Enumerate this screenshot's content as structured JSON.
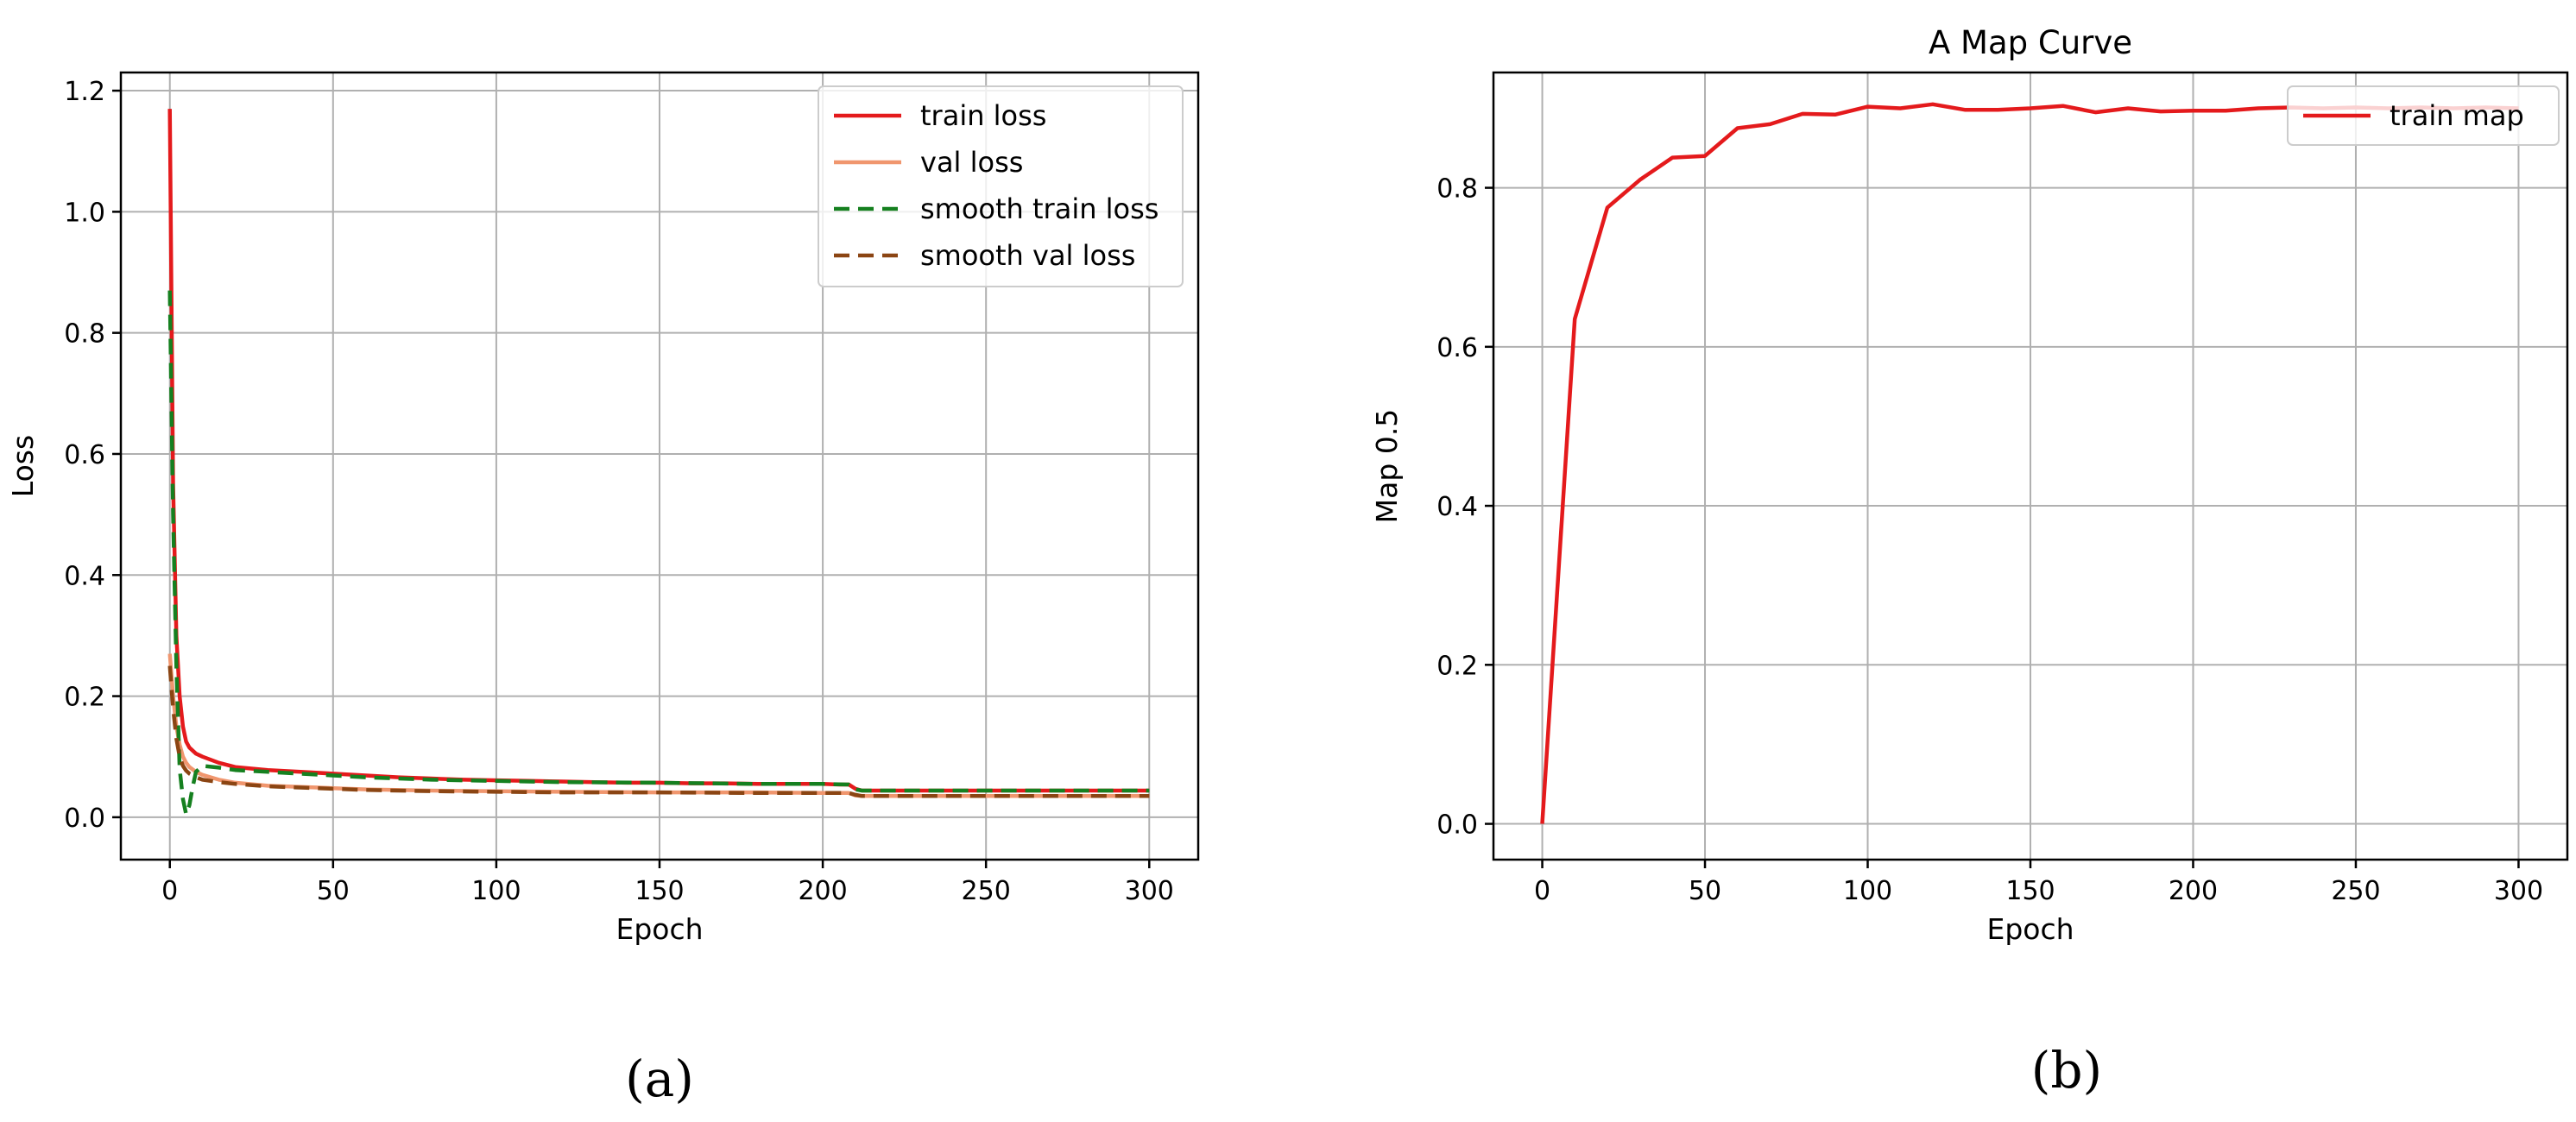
{
  "chart_data": [
    {
      "type": "line",
      "title": "",
      "xlabel": "Epoch",
      "ylabel": "Loss",
      "xlim": [
        -15,
        315
      ],
      "ylim": [
        -0.07,
        1.23
      ],
      "xticks": [
        0,
        50,
        100,
        150,
        200,
        250,
        300
      ],
      "yticks": [
        0.0,
        0.2,
        0.4,
        0.6,
        0.8,
        1.0,
        1.2
      ],
      "grid": true,
      "legend_position": "top-right",
      "caption": "(a)",
      "series": [
        {
          "name": "train loss",
          "color": "#e41a1c",
          "dash": "solid",
          "x": [
            0,
            1,
            2,
            3,
            4,
            5,
            6,
            8,
            10,
            15,
            20,
            30,
            40,
            50,
            60,
            70,
            80,
            90,
            100,
            110,
            120,
            130,
            140,
            150,
            160,
            170,
            180,
            190,
            200,
            205,
            208,
            210,
            212,
            220,
            240,
            260,
            280,
            300
          ],
          "y": [
            1.17,
            0.55,
            0.3,
            0.2,
            0.15,
            0.125,
            0.115,
            0.105,
            0.1,
            0.09,
            0.083,
            0.078,
            0.075,
            0.072,
            0.069,
            0.066,
            0.064,
            0.062,
            0.061,
            0.06,
            0.059,
            0.058,
            0.057,
            0.057,
            0.056,
            0.056,
            0.055,
            0.055,
            0.055,
            0.054,
            0.054,
            0.047,
            0.044,
            0.044,
            0.044,
            0.044,
            0.044,
            0.044
          ]
        },
        {
          "name": "val loss",
          "color": "#f0966e",
          "dash": "solid",
          "x": [
            0,
            1,
            2,
            3,
            4,
            5,
            6,
            8,
            10,
            15,
            20,
            30,
            40,
            50,
            60,
            80,
            100,
            120,
            150,
            180,
            200,
            208,
            210,
            212,
            240,
            270,
            300
          ],
          "y": [
            0.27,
            0.2,
            0.15,
            0.12,
            0.1,
            0.09,
            0.083,
            0.075,
            0.07,
            0.062,
            0.057,
            0.052,
            0.05,
            0.048,
            0.046,
            0.044,
            0.043,
            0.042,
            0.041,
            0.041,
            0.04,
            0.04,
            0.036,
            0.035,
            0.035,
            0.035,
            0.035
          ]
        },
        {
          "name": "smooth train loss",
          "color": "#15801f",
          "dash": "dashed",
          "x": [
            0,
            1,
            2,
            3,
            4,
            5,
            6,
            7,
            8,
            10,
            15,
            20,
            30,
            40,
            50,
            60,
            80,
            100,
            120,
            150,
            180,
            200,
            208,
            210,
            212,
            240,
            270,
            300
          ],
          "y": [
            0.87,
            0.5,
            0.25,
            0.08,
            0.03,
            0.005,
            0.02,
            0.05,
            0.075,
            0.085,
            0.082,
            0.078,
            0.075,
            0.072,
            0.069,
            0.066,
            0.062,
            0.06,
            0.058,
            0.057,
            0.055,
            0.055,
            0.054,
            0.046,
            0.044,
            0.044,
            0.044,
            0.044
          ]
        },
        {
          "name": "smooth val loss",
          "color": "#8b4513",
          "dash": "dashed",
          "x": [
            0,
            1,
            2,
            3,
            4,
            5,
            6,
            8,
            10,
            15,
            20,
            30,
            40,
            50,
            60,
            80,
            100,
            120,
            150,
            180,
            200,
            208,
            210,
            212,
            240,
            270,
            300
          ],
          "y": [
            0.25,
            0.18,
            0.13,
            0.1,
            0.085,
            0.077,
            0.072,
            0.066,
            0.062,
            0.058,
            0.055,
            0.051,
            0.049,
            0.047,
            0.045,
            0.043,
            0.042,
            0.041,
            0.041,
            0.04,
            0.04,
            0.04,
            0.037,
            0.035,
            0.035,
            0.035,
            0.035
          ]
        }
      ]
    },
    {
      "type": "line",
      "title": "A Map Curve",
      "xlabel": "Epoch",
      "ylabel": "Map 0.5",
      "xlim": [
        -15,
        315
      ],
      "ylim": [
        -0.045,
        0.945
      ],
      "xticks": [
        0,
        50,
        100,
        150,
        200,
        250,
        300
      ],
      "yticks": [
        0.0,
        0.2,
        0.4,
        0.6,
        0.8
      ],
      "grid": true,
      "legend_position": "top-right",
      "caption": "(b)",
      "series": [
        {
          "name": "train map",
          "color": "#e41a1c",
          "dash": "solid",
          "x": [
            0,
            10,
            20,
            30,
            40,
            50,
            60,
            70,
            80,
            90,
            100,
            110,
            120,
            130,
            140,
            150,
            160,
            170,
            180,
            190,
            200,
            210,
            220,
            230,
            240,
            250,
            260,
            270,
            280,
            290,
            300
          ],
          "y": [
            0.0,
            0.635,
            0.775,
            0.81,
            0.838,
            0.84,
            0.875,
            0.88,
            0.893,
            0.892,
            0.902,
            0.9,
            0.905,
            0.898,
            0.898,
            0.9,
            0.903,
            0.895,
            0.9,
            0.896,
            0.897,
            0.897,
            0.9,
            0.901,
            0.9,
            0.901,
            0.9,
            0.901,
            0.9,
            0.901,
            0.9
          ]
        }
      ]
    }
  ]
}
